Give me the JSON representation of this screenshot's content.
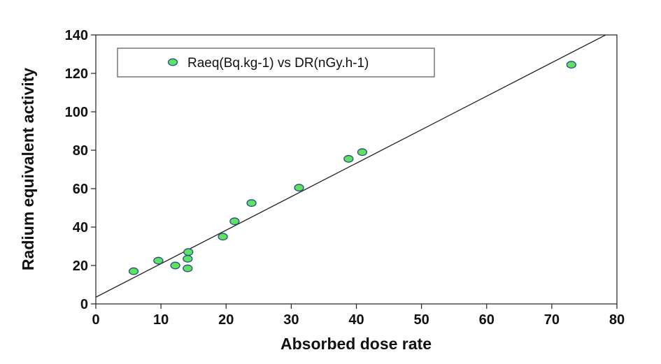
{
  "chart_data": {
    "type": "scatter",
    "xlabel": "Absorbed dose rate",
    "ylabel": "Radium equivalent activity",
    "xlim": [
      0,
      80
    ],
    "ylim": [
      0,
      140
    ],
    "x_ticks": [
      "0",
      "10",
      "20",
      "30",
      "40",
      "50",
      "60",
      "70",
      "80"
    ],
    "y_ticks": [
      "0",
      "20",
      "40",
      "60",
      "80",
      "100",
      "120",
      "140"
    ],
    "legend_position": "top-left",
    "grid": false,
    "series": [
      {
        "name": "Raeq(Bq.kg-1) vs DR(nGy.h-1)",
        "color": "#5ee35e",
        "points": [
          {
            "x": 5.8,
            "y": 17
          },
          {
            "x": 9.6,
            "y": 22.5
          },
          {
            "x": 12.2,
            "y": 20
          },
          {
            "x": 14.1,
            "y": 18.5
          },
          {
            "x": 14.1,
            "y": 23.5
          },
          {
            "x": 14.2,
            "y": 27
          },
          {
            "x": 19.5,
            "y": 35
          },
          {
            "x": 21.3,
            "y": 43
          },
          {
            "x": 23.9,
            "y": 52.5
          },
          {
            "x": 31.2,
            "y": 60.5
          },
          {
            "x": 38.8,
            "y": 75.5
          },
          {
            "x": 40.9,
            "y": 79
          },
          {
            "x": 73,
            "y": 124.5
          }
        ]
      }
    ],
    "trendline": {
      "type": "linear",
      "points": [
        {
          "x": 0,
          "y": 3.5
        },
        {
          "x": 80,
          "y": 143
        }
      ]
    }
  }
}
